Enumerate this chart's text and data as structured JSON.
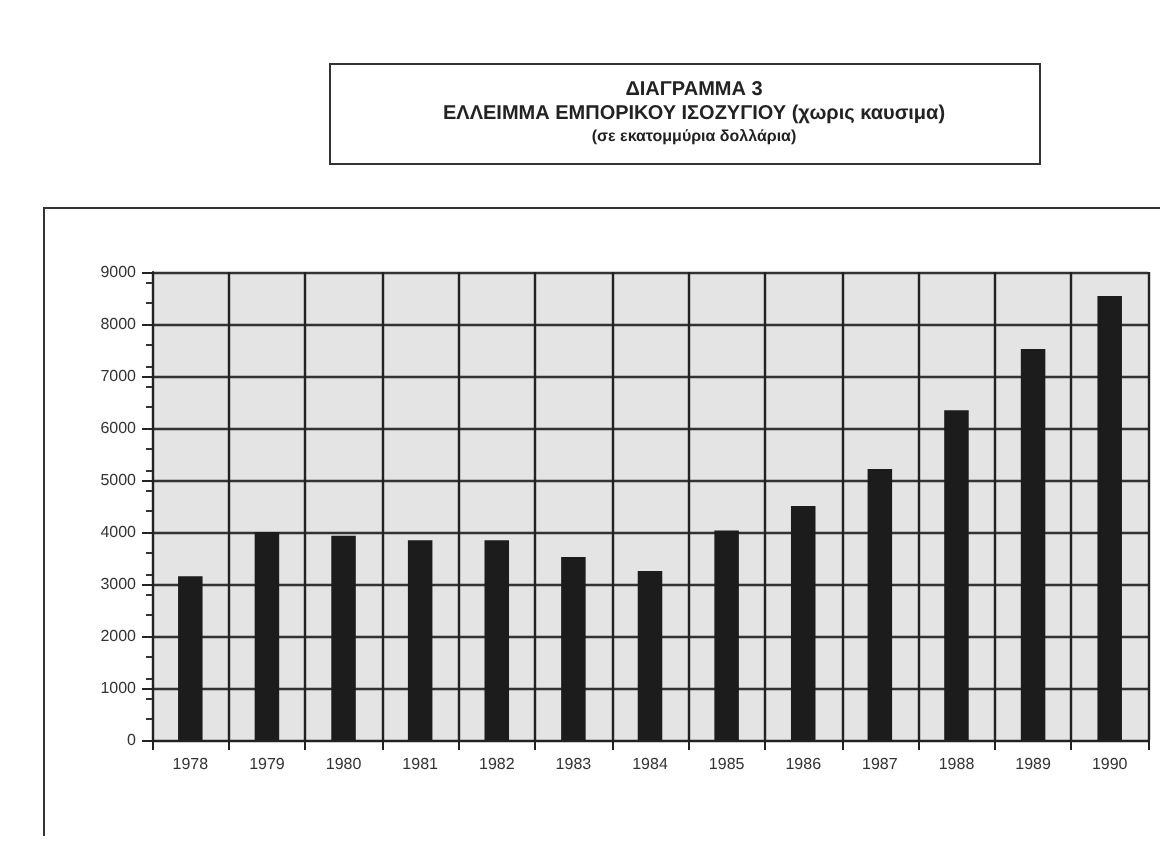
{
  "chart_data": {
    "type": "bar",
    "title": "ΔΙΑΓΡΑΜΜΑ 3\nΕΛΛΕΙΜΜΑ ΕΜΠΟΡΙΚΟΥ ΙΣΟΖΥΓΙΟΥ (χωρις καυσιμα)",
    "subtitle": "(σε εκατομμύρια δολλάρια)",
    "categories": [
      "1978",
      "1979",
      "1980",
      "1981",
      "1982",
      "1983",
      "1984",
      "1985",
      "1986",
      "1987",
      "1988",
      "1989",
      "1990"
    ],
    "values": [
      3150,
      4000,
      3930,
      3840,
      3840,
      3520,
      3250,
      4030,
      4500,
      5210,
      6340,
      7520,
      8540
    ],
    "color": "#1c1c1c",
    "ylim": [
      0,
      9000
    ],
    "yticks": [
      0,
      1000,
      2000,
      3000,
      4000,
      5000,
      6000,
      7000,
      8000,
      9000
    ],
    "grid": true
  }
}
